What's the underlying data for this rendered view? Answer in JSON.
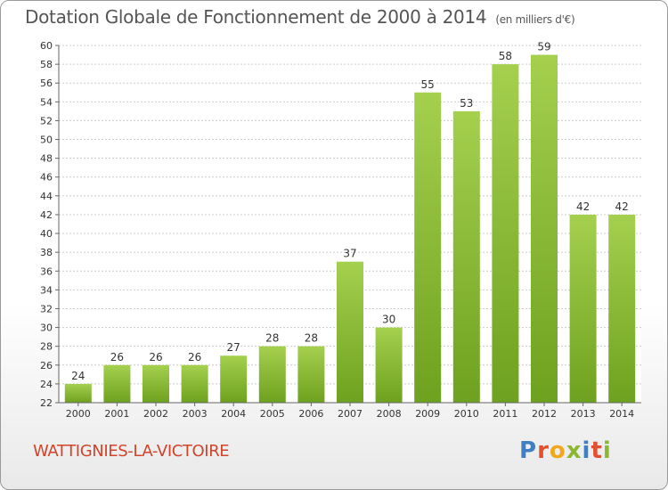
{
  "title": "Dotation Globale de Fonctionnement de 2000 à 2014",
  "unit": "(en milliers d'€)",
  "commune": "WATTIGNIES-LA-VICTOIRE",
  "logo": "Proxiti",
  "colors": {
    "bar_light": "#a4d04e",
    "bar_dark": "#6ea11f",
    "title": "#555555",
    "commune": "#d2442a",
    "grid": "#cccccc"
  },
  "chart_data": {
    "type": "bar",
    "title": "Dotation Globale de Fonctionnement de 2000 à 2014",
    "subtitle": "(en milliers d'€)",
    "xlabel": "",
    "ylabel": "",
    "categories": [
      "2000",
      "2001",
      "2002",
      "2003",
      "2004",
      "2005",
      "2006",
      "2007",
      "2008",
      "2009",
      "2010",
      "2011",
      "2012",
      "2013",
      "2014"
    ],
    "values": [
      24,
      26,
      26,
      26,
      27,
      28,
      28,
      37,
      30,
      55,
      53,
      58,
      59,
      42,
      42
    ],
    "ylim": [
      22,
      60
    ],
    "ytick_step": 2,
    "grid": true,
    "data_labels": true
  }
}
